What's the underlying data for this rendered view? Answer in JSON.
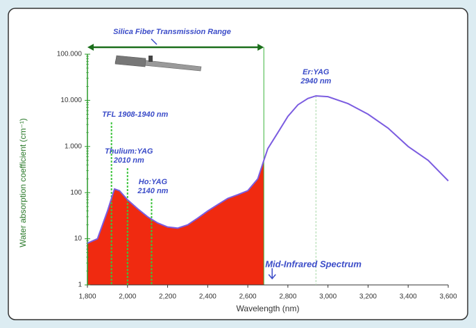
{
  "chart_data": {
    "type": "line",
    "x_label": "Wavelength (nm)",
    "y_label": "Water absorption coefficient (cm⁻¹)",
    "x": [
      1800,
      1850,
      1900,
      1935,
      1960,
      2000,
      2050,
      2100,
      2150,
      2200,
      2250,
      2300,
      2350,
      2400,
      2450,
      2500,
      2550,
      2600,
      2650,
      2680,
      2700,
      2750,
      2800,
      2850,
      2900,
      2940,
      3000,
      3100,
      3200,
      3300,
      3400,
      3500,
      3600
    ],
    "series": [
      {
        "color": "#7b5ce0",
        "values": [
          8,
          10,
          40,
          120,
          110,
          70,
          45,
          30,
          22,
          18,
          17,
          20,
          28,
          40,
          55,
          75,
          90,
          110,
          200,
          500,
          900,
          2000,
          4500,
          8000,
          11000,
          12500,
          12000,
          8500,
          5000,
          2500,
          1000,
          500,
          180
        ]
      }
    ],
    "fill_color": "#f02a10",
    "xlim": [
      1800,
      3600
    ],
    "xticks": [
      {
        "value": 1800,
        "label": "1,800"
      },
      {
        "value": 2000,
        "label": "2,000"
      },
      {
        "value": 2200,
        "label": "2,200"
      },
      {
        "value": 2400,
        "label": "2,400"
      },
      {
        "value": 2600,
        "label": "2,600"
      },
      {
        "value": 2800,
        "label": "2,800"
      },
      {
        "value": 3000,
        "label": "3,000"
      },
      {
        "value": 3200,
        "label": "3,200"
      },
      {
        "value": 3400,
        "label": "3,400"
      },
      {
        "value": 3600,
        "label": "3,600"
      }
    ],
    "ylim": [
      1,
      100000
    ],
    "log_y": true,
    "yticks": [
      1,
      10,
      100,
      {
        "value": 1000,
        "label": "1.000"
      },
      {
        "value": 10000,
        "label": "10.000"
      },
      {
        "value": 100000,
        "label": "100.000"
      }
    ],
    "transmission_range": {
      "label": "Silica Fiber Transmission Range",
      "x": [
        1800,
        2680
      ]
    },
    "annotations": [
      {
        "x": 1920,
        "lines": [
          "TFL 1908-1940 nm"
        ]
      },
      {
        "x": 2000,
        "lines": [
          "Thulium:YAG",
          "2010 nm"
        ]
      },
      {
        "x": 2120,
        "lines": [
          "Ho:YAG",
          "2140 nm"
        ]
      },
      {
        "x": 2940,
        "lines": [
          "Er:YAG",
          "2940 nm"
        ]
      }
    ],
    "region_label": "Mid-Infrared Spectrum"
  }
}
